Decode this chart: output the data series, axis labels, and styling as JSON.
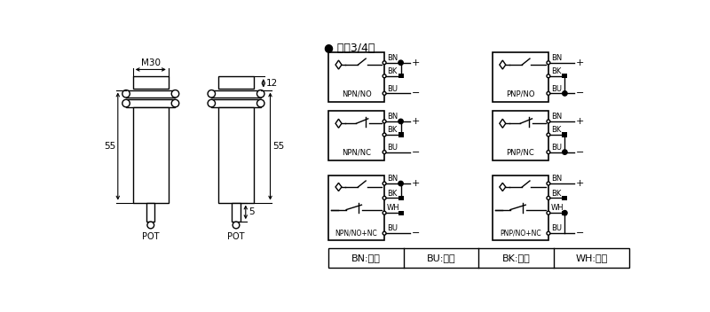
{
  "bg_color": "#ffffff",
  "header_text": "● 直涁3/4线",
  "legend_items": [
    "BN:棕色",
    "BU:兰色",
    "BK:黑色",
    "WH:白色"
  ],
  "circuit_labels_left": [
    "NPN/NO",
    "NPN/NC",
    "NPN/NO+NC"
  ],
  "circuit_labels_right": [
    "PNP/NO",
    "PNP/NC",
    "PNP/NO+NC"
  ],
  "dim_M30": "M30",
  "dim_55a": "55",
  "dim_55b": "55",
  "dim_12": "12",
  "dim_5": "5",
  "dim_pot": "POT"
}
